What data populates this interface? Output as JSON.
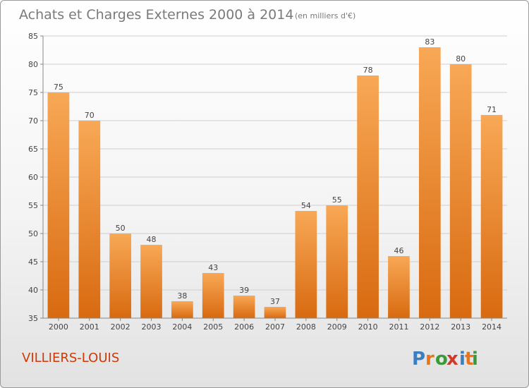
{
  "title": "Achats et Charges Externes 2000 à 2014",
  "unit": "(en milliers d'€)",
  "commune": "VILLIERS-LOUIS",
  "logo": {
    "text": "Proxiti",
    "colors": [
      "#3a7fc1",
      "#e8741e",
      "#3a9a3a",
      "#d03a2a",
      "#3a7fc1",
      "#e8741e",
      "#3a9a3a"
    ]
  },
  "colors": {
    "bar_top": "#f8a856",
    "bar_bottom": "#d86a10",
    "grid": "#cfcfcf",
    "axis": "#888888"
  },
  "chart_data": {
    "type": "bar",
    "categories": [
      "2000",
      "2001",
      "2002",
      "2003",
      "2004",
      "2005",
      "2006",
      "2007",
      "2008",
      "2009",
      "2010",
      "2011",
      "2012",
      "2013",
      "2014"
    ],
    "values": [
      75,
      70,
      50,
      48,
      38,
      43,
      39,
      37,
      54,
      55,
      78,
      46,
      83,
      80,
      71
    ],
    "yticks": [
      35,
      40,
      45,
      50,
      55,
      60,
      65,
      70,
      75,
      80,
      85
    ],
    "ylim": [
      35,
      85
    ],
    "grid": true
  }
}
